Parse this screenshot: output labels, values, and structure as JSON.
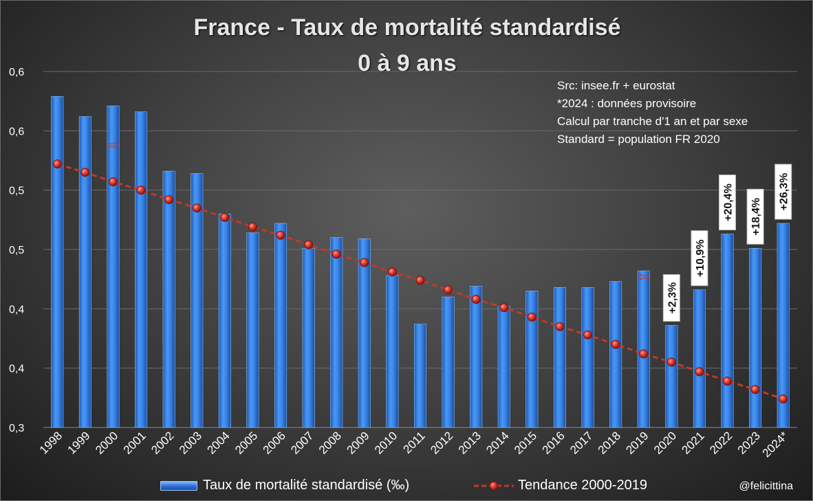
{
  "chart_data": {
    "type": "bar",
    "title": "France - Taux de mortalité standardisé",
    "subtitle": "0 à 9 ans",
    "xlabel": "",
    "ylabel": "",
    "ylim": [
      0.3,
      0.6
    ],
    "y_ticks": [
      "0,3",
      "0,4",
      "0,4",
      "0,5",
      "0,5",
      "0,6",
      "0,6"
    ],
    "y_tick_values": [
      0.3,
      0.35,
      0.4,
      0.45,
      0.5,
      0.55,
      0.6
    ],
    "categories": [
      "1998",
      "1999",
      "2000",
      "2001",
      "2002",
      "2003",
      "2004",
      "2005",
      "2006",
      "2007",
      "2008",
      "2009",
      "2010",
      "2011",
      "2012",
      "2013",
      "2014",
      "2015",
      "2016",
      "2017",
      "2018",
      "2019",
      "2020",
      "2021",
      "2022",
      "2023",
      "2024*"
    ],
    "series": [
      {
        "name": "Taux de mortalité standardisé (‰)",
        "kind": "bar",
        "color": "#2f7de1",
        "values": [
          0.579,
          0.562,
          0.571,
          0.566,
          0.516,
          0.514,
          0.48,
          0.464,
          0.472,
          0.451,
          0.46,
          0.459,
          0.428,
          0.387,
          0.41,
          0.419,
          0.402,
          0.415,
          0.418,
          0.418,
          0.423,
          0.432,
          0.386,
          0.416,
          0.463,
          0.451,
          0.472
        ]
      },
      {
        "name": "Tendance 2000-2019",
        "kind": "line",
        "color": "#c0392b",
        "values": [
          0.522,
          0.515,
          0.507,
          0.5,
          0.492,
          0.485,
          0.477,
          0.469,
          0.462,
          0.454,
          0.446,
          0.439,
          0.431,
          0.424,
          0.416,
          0.408,
          0.401,
          0.393,
          0.385,
          0.378,
          0.37,
          0.362,
          0.355,
          0.347,
          0.339,
          0.332,
          0.324
        ]
      }
    ],
    "annotations": [
      {
        "category": "2020",
        "text": "+2,3%"
      },
      {
        "category": "2021",
        "text": "+10,9%"
      },
      {
        "category": "2022",
        "text": "+20,4%"
      },
      {
        "category": "2023",
        "text": "+18,4%"
      },
      {
        "category": "2024*",
        "text": "+26,3%"
      }
    ],
    "markers": [
      {
        "category": "2000",
        "symbol": "⇨"
      },
      {
        "category": "2019",
        "symbol": "⇦"
      }
    ]
  },
  "source_lines": [
    "Src: insee.fr + eurostat",
    "*2024 : données provisoire",
    "Calcul par tranche d'1 an et par sexe",
    "Standard = population FR 2020"
  ],
  "legend": {
    "bars": "Taux de mortalité standardisé (‰)",
    "line": "Tendance 2000-2019"
  },
  "handle": "@felicittina"
}
